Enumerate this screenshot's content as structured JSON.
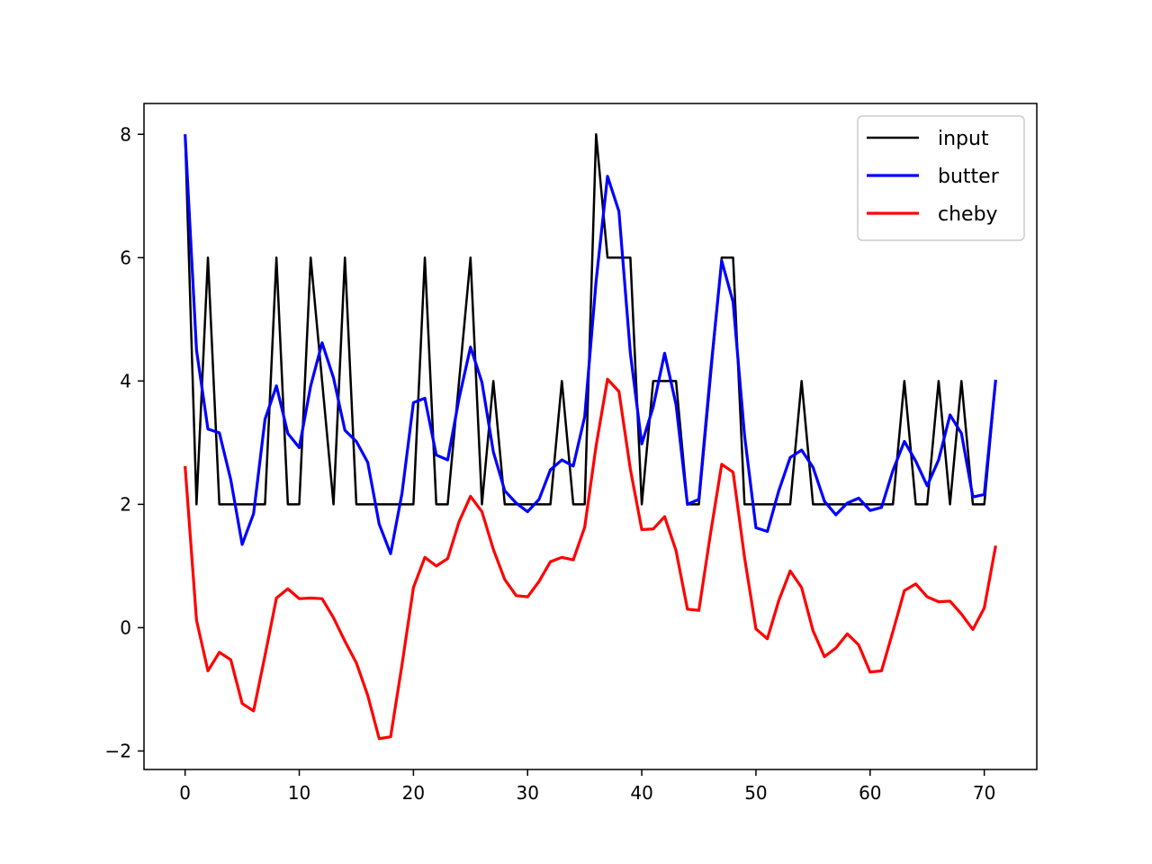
{
  "chart_data": {
    "type": "line",
    "title": "",
    "xlabel": "",
    "ylabel": "",
    "xlim": [
      -3.6,
      74.6
    ],
    "ylim": [
      -2.3,
      8.5
    ],
    "xticks": [
      0,
      10,
      20,
      30,
      40,
      50,
      60,
      70
    ],
    "yticks": [
      -2,
      0,
      2,
      4,
      6,
      8
    ],
    "grid": false,
    "legend_position": "top-right",
    "x": [
      0,
      1,
      2,
      3,
      4,
      5,
      6,
      7,
      8,
      9,
      10,
      11,
      12,
      13,
      14,
      15,
      16,
      17,
      18,
      19,
      20,
      21,
      22,
      23,
      24,
      25,
      26,
      27,
      28,
      29,
      30,
      31,
      32,
      33,
      34,
      35,
      36,
      37,
      38,
      39,
      40,
      41,
      42,
      43,
      44,
      45,
      46,
      47,
      48,
      49,
      50,
      51,
      52,
      53,
      54,
      55,
      56,
      57,
      58,
      59,
      60,
      61,
      62,
      63,
      64,
      65,
      66,
      67,
      68,
      69,
      70,
      71
    ],
    "series": [
      {
        "name": "input",
        "color": "#000000",
        "values": [
          8,
          2,
          6,
          2,
          2,
          2,
          2,
          2,
          6,
          2,
          2,
          6,
          4,
          2,
          6,
          2,
          2,
          2,
          2,
          2,
          2,
          6,
          2,
          2,
          4,
          6,
          2,
          4,
          2,
          2,
          2,
          2,
          2,
          4,
          2,
          2,
          8,
          6,
          6,
          6,
          2,
          4,
          4,
          4,
          2,
          2,
          4,
          6,
          6,
          2,
          2,
          2,
          2,
          2,
          4,
          2,
          2,
          2,
          2,
          2,
          2,
          2,
          2,
          4,
          2,
          2,
          4,
          2,
          4,
          2,
          2,
          4
        ]
      },
      {
        "name": "butter",
        "color": "#0000ff",
        "values": [
          8.0,
          4.5,
          3.22,
          3.16,
          2.4,
          1.35,
          1.85,
          3.38,
          3.92,
          3.15,
          2.92,
          3.92,
          4.62,
          4.05,
          3.2,
          3.02,
          2.68,
          1.68,
          1.2,
          2.18,
          3.65,
          3.72,
          2.8,
          2.72,
          3.72,
          4.55,
          3.98,
          2.85,
          2.22,
          2.02,
          1.88,
          2.08,
          2.56,
          2.72,
          2.62,
          3.42,
          5.62,
          7.32,
          6.75,
          4.45,
          2.98,
          3.58,
          4.45,
          3.62,
          2.0,
          2.08,
          4.1,
          5.95,
          5.28,
          3.12,
          1.62,
          1.56,
          2.22,
          2.76,
          2.88,
          2.6,
          2.05,
          1.83,
          2.02,
          2.1,
          1.9,
          1.95,
          2.55,
          3.02,
          2.7,
          2.3,
          2.72,
          3.45,
          3.15,
          2.12,
          2.16,
          4.02
        ]
      },
      {
        "name": "cheby",
        "color": "#ff0000",
        "values": [
          2.62,
          0.12,
          -0.7,
          -0.4,
          -0.52,
          -1.23,
          -1.35,
          -0.45,
          0.48,
          0.63,
          0.47,
          0.48,
          0.47,
          0.16,
          -0.22,
          -0.57,
          -1.1,
          -1.8,
          -1.77,
          -0.6,
          0.65,
          1.14,
          1.0,
          1.12,
          1.72,
          2.13,
          1.88,
          1.27,
          0.78,
          0.52,
          0.5,
          0.75,
          1.07,
          1.14,
          1.1,
          1.63,
          2.95,
          4.03,
          3.83,
          2.57,
          1.59,
          1.6,
          1.8,
          1.25,
          0.3,
          0.28,
          1.5,
          2.65,
          2.52,
          1.14,
          -0.02,
          -0.18,
          0.44,
          0.92,
          0.65,
          -0.05,
          -0.47,
          -0.33,
          -0.1,
          -0.28,
          -0.72,
          -0.7,
          -0.06,
          0.6,
          0.71,
          0.5,
          0.42,
          0.43,
          0.22,
          -0.03,
          0.32,
          1.33
        ]
      }
    ]
  }
}
